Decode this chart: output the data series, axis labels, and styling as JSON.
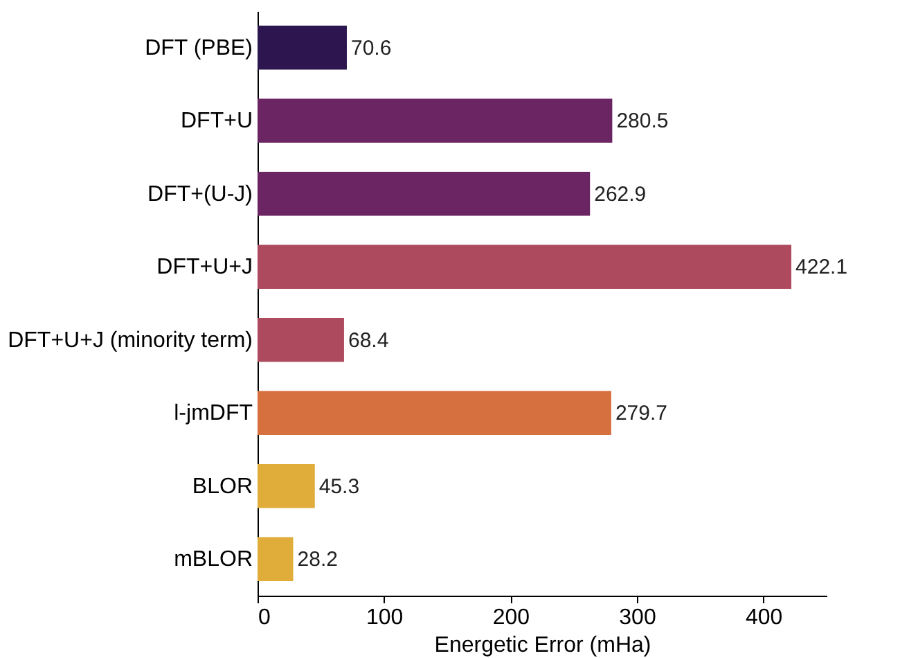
{
  "chart_data": {
    "type": "bar",
    "orientation": "horizontal",
    "xlabel": "Energetic Error (mHa)",
    "categories": [
      "DFT (PBE)",
      "DFT+U",
      "DFT+(U-J)",
      "DFT+U+J",
      "DFT+U+J (minority term)",
      "l-jmDFT",
      "BLOR",
      "mBLOR"
    ],
    "values": [
      70.6,
      280.5,
      262.9,
      422.1,
      68.4,
      279.7,
      45.3,
      28.2
    ],
    "colors": [
      "#2d1650",
      "#6b2563",
      "#6b2563",
      "#ae4a5e",
      "#ae4a5e",
      "#d6703e",
      "#e0ac3a",
      "#e0ac3a"
    ],
    "xlim": [
      0,
      450
    ],
    "xticks": [
      0,
      100,
      200,
      300,
      400
    ],
    "data_labels": true,
    "grid": false
  }
}
